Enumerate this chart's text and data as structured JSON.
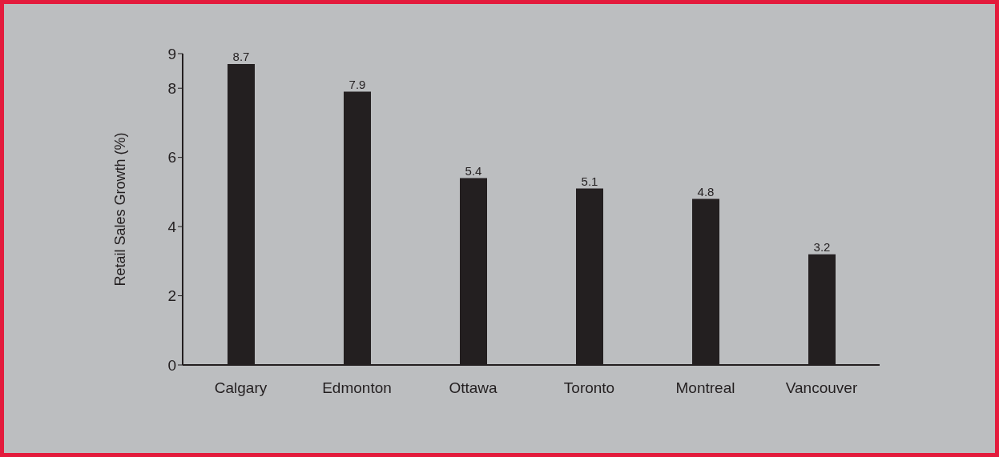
{
  "chart_data": {
    "type": "bar",
    "ylabel": "Retail Sales Growth (%)",
    "categories": [
      "Calgary",
      "Edmonton",
      "Ottawa",
      "Toronto",
      "Montreal",
      "Vancouver"
    ],
    "values": [
      8.7,
      7.9,
      5.4,
      5.1,
      4.8,
      3.2
    ],
    "color": "#231f20",
    "ylim": [
      0,
      9
    ],
    "yticks": [
      0,
      2,
      4,
      6,
      8,
      9
    ],
    "data_labels": true
  }
}
